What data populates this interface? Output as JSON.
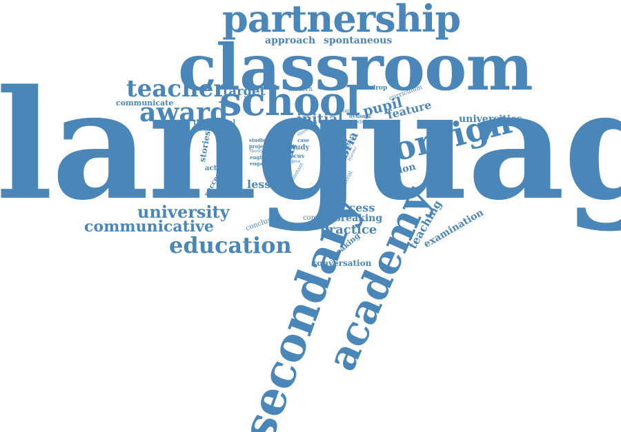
{
  "colors": {
    "word": "#4a86b8",
    "background": "#ffffff"
  },
  "words": {
    "language": "language",
    "classroom": "classroom",
    "partnership": "partnership",
    "school": "school",
    "secondary": "secondary",
    "academy": "academy",
    "foreign": "foreign",
    "teacher": "teacher",
    "award": "award",
    "education": "education",
    "university": "university",
    "communicative": "communicative",
    "approach": "approach",
    "spontaneous": "spontaneous",
    "target": "target",
    "pupil": "pupil",
    "initial": "initial",
    "feature": "feature",
    "universities": "universities",
    "film": "film",
    "lesson": "lesson",
    "cumbria": "cumbria",
    "london": "london",
    "success": "success",
    "breaking": "breaking",
    "practice": "practice",
    "teaching": "teaching",
    "examination": "examination",
    "conversation": "conversation",
    "speaking": "speaking",
    "conclusion": "conclusion",
    "combine": "combine",
    "communicate": "communicate",
    "theoretical": "theoretical",
    "example": "example",
    "stories": "stories",
    "activities": "activities",
    "successful": "successful",
    "modern": "modern",
    "backdrop": "backdrop",
    "curriculum": "curriculum",
    "studies": "studies",
    "project": "project",
    "english": "english",
    "engage": "engage",
    "study": "study",
    "focus": "focus",
    "constant": "constant",
    "model": "model",
    "subject": "subject",
    "case": "case",
    "unique": "unique",
    "dynamic": "dynamic",
    "modern2": "modern",
    "material": "material",
    "student": "student",
    "learner": "learner",
    "theory": "theory",
    "agree": "agree",
    "diverse": "diverse",
    "share": "share",
    "use": "use",
    "abroad": "abroad"
  }
}
